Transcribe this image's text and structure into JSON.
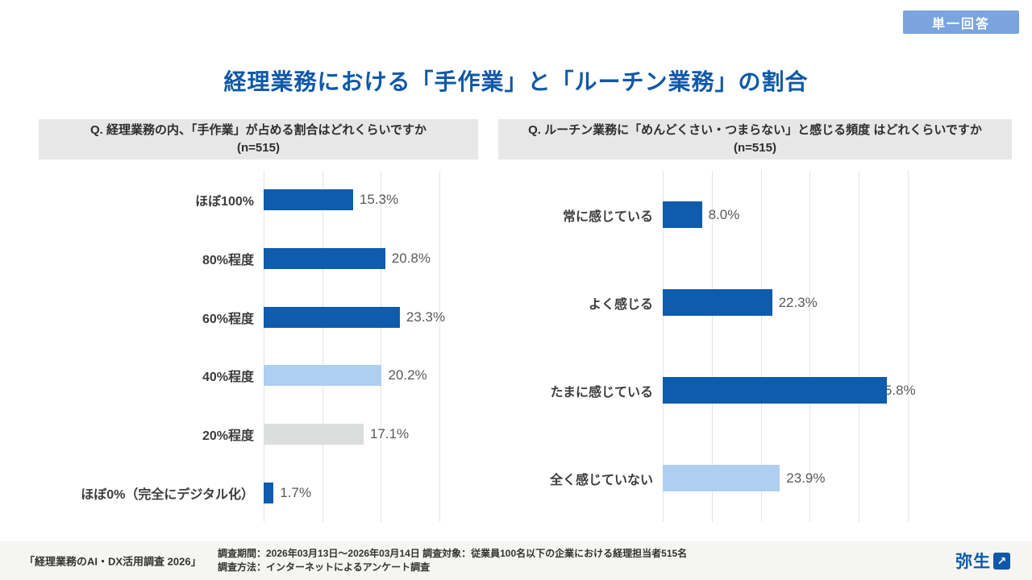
{
  "badge": {
    "label": "単一回答",
    "bg": "#7ba4de"
  },
  "title": "経理業務における「手作業」と「ルーチン業務」の割合",
  "palette": {
    "dark": "#0e5cab",
    "light": "#aecff0",
    "gray": "#dcdddd"
  },
  "chart_data": [
    {
      "type": "bar",
      "orientation": "horizontal",
      "title": "Q. 経理業務の内、「手作業」が占める割合はどれくらいですか",
      "subtitle": "(n=515)",
      "categories": [
        "ほぼ100%",
        "80%程度",
        "60%程度",
        "40%程度",
        "20%程度",
        "ほぼ0%（完全にデジタル化）"
      ],
      "values": [
        15.3,
        20.8,
        23.3,
        20.2,
        17.1,
        1.7
      ],
      "labels": [
        "15.3%",
        "20.8%",
        "23.3%",
        "20.2%",
        "17.1%",
        "1.7%"
      ],
      "colors": [
        "dark",
        "dark",
        "dark",
        "light",
        "gray",
        "dark"
      ],
      "xlim": [
        0,
        30
      ],
      "grid_step": 10,
      "grid": true,
      "legend": false
    },
    {
      "type": "bar",
      "orientation": "horizontal",
      "title": "Q. ルーチン業務に「めんどくさい・つまらない」と感じる頻度 はどれくらいですか",
      "subtitle": "(n=515)",
      "categories": [
        "常に感じている",
        "よく感じる",
        "たまに感じている",
        "全く感じていない"
      ],
      "values": [
        8.0,
        22.3,
        45.8,
        23.9
      ],
      "labels": [
        "8.0%",
        "22.3%",
        "45.8%",
        "23.9%"
      ],
      "colors": [
        "dark",
        "dark",
        "dark",
        "light"
      ],
      "xlim": [
        0,
        50
      ],
      "grid_step": 10,
      "grid": true,
      "legend": false,
      "label_overlap_index": 2
    }
  ],
  "footer": {
    "source": "「経理業務のAI・DX活用調査 2026」",
    "line1": "調査期間：2026年03月13日〜2026年03月14日 調査対象：従業員100名以下の企業における経理担当者515名",
    "line2": "調査方法：インターネットによるアンケート調査",
    "logo_text": "弥生",
    "logo_arrow": "↗"
  }
}
